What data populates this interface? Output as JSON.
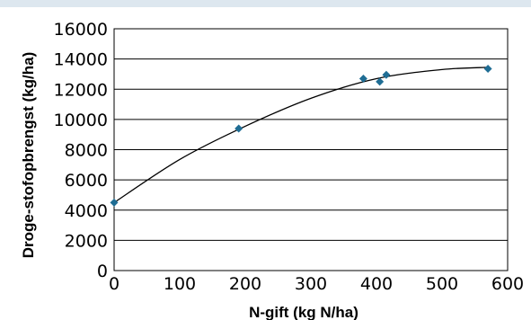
{
  "chart_data": {
    "type": "scatter",
    "title": "",
    "xlabel": "N-gift (kg N/ha)",
    "ylabel": "Droge-stofopbrengst (kg/ha)",
    "xlim": [
      0,
      600
    ],
    "ylim": [
      0,
      16000
    ],
    "x_ticks": [
      0,
      100,
      200,
      300,
      400,
      500,
      600
    ],
    "y_ticks": [
      0,
      2000,
      4000,
      6000,
      8000,
      10000,
      12000,
      14000,
      16000
    ],
    "grid": "horizontal",
    "legend": "none",
    "series": [
      {
        "marker": "diamond",
        "color": "#1f6d94",
        "x": [
          0,
          190,
          380,
          405,
          415,
          570
        ],
        "y": [
          4500,
          9400,
          12700,
          12500,
          12950,
          13350
        ]
      }
    ],
    "trendline": {
      "type": "polynomial",
      "color": "#000000",
      "x": [
        0,
        100,
        200,
        300,
        400,
        500,
        570
      ],
      "y": [
        4500,
        7350,
        9550,
        11400,
        12700,
        13300,
        13450
      ]
    }
  }
}
